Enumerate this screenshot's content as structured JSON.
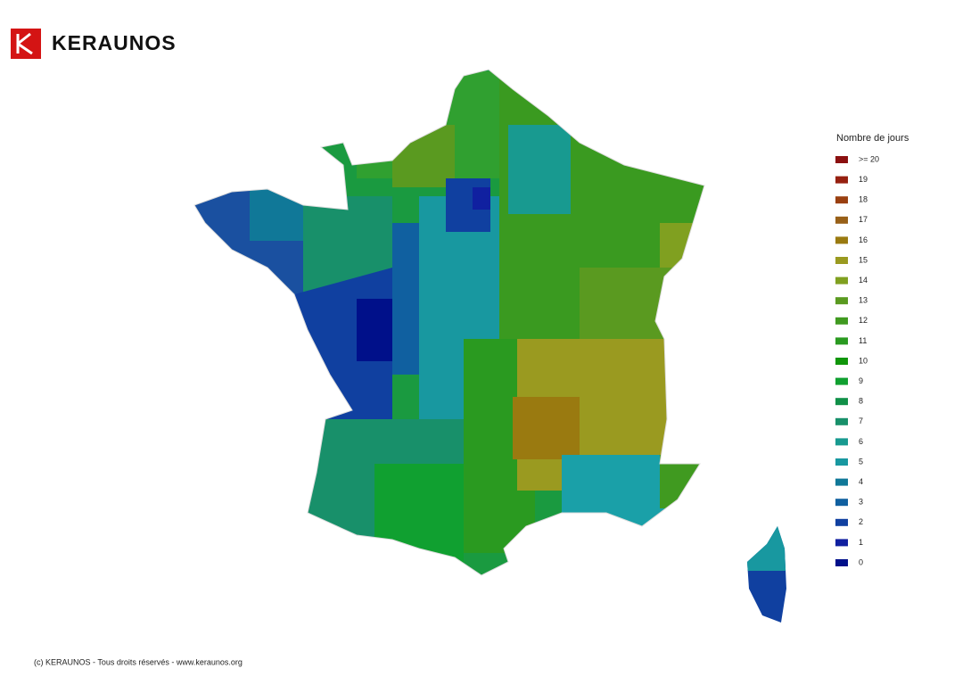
{
  "header": {
    "logo": "KERAUNOS"
  },
  "legend": {
    "title": "Nombre de jours",
    "items": [
      {
        "label": ">= 20",
        "color": "#8b1010"
      },
      {
        "label": "19",
        "color": "#962010"
      },
      {
        "label": "18",
        "color": "#9a4010"
      },
      {
        "label": "17",
        "color": "#986018"
      },
      {
        "label": "16",
        "color": "#9a7a10"
      },
      {
        "label": "15",
        "color": "#9a9a20"
      },
      {
        "label": "14",
        "color": "#80a020"
      },
      {
        "label": "13",
        "color": "#5a9a20"
      },
      {
        "label": "12",
        "color": "#409a20"
      },
      {
        "label": "11",
        "color": "#2a9a20"
      },
      {
        "label": "10",
        "color": "#10960a"
      },
      {
        "label": "9",
        "color": "#10a030"
      },
      {
        "label": "8",
        "color": "#109048"
      },
      {
        "label": "7",
        "color": "#18906a"
      },
      {
        "label": "6",
        "color": "#189a90"
      },
      {
        "label": "5",
        "color": "#1898a0"
      },
      {
        "label": "4",
        "color": "#107898"
      },
      {
        "label": "3",
        "color": "#1060a0"
      },
      {
        "label": "2",
        "color": "#1040a0"
      },
      {
        "label": "1",
        "color": "#1020a0"
      },
      {
        "label": "0",
        "color": "#00108a"
      }
    ]
  },
  "footer": "(c) KERAUNOS - Tous droits réservés - www.keraunos.org"
}
